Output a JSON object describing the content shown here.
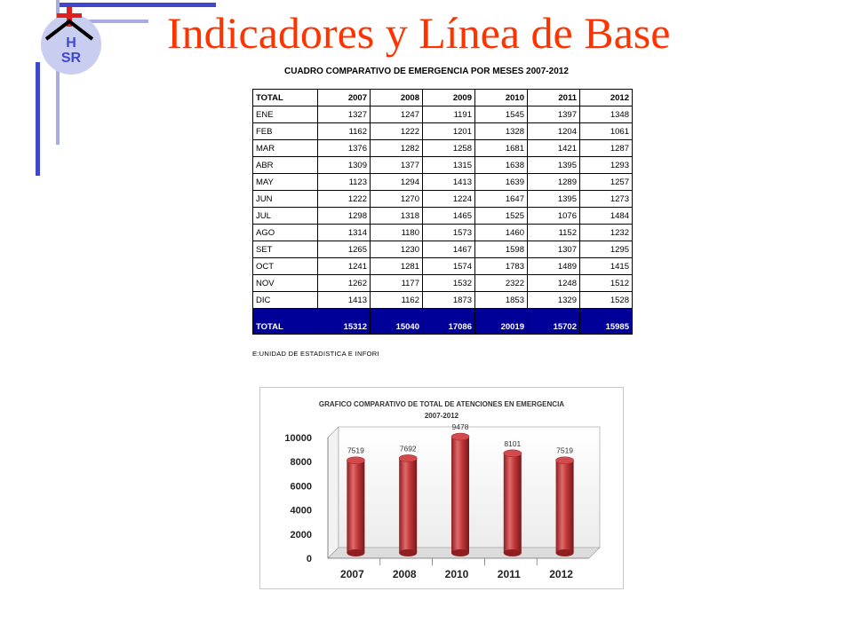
{
  "page": {
    "title": "Indicadores y Línea de Base"
  },
  "logo": {
    "letters": "HSR"
  },
  "table": {
    "title": "CUADRO COMPARATIVO DE EMERGENCIA POR MESES 2007-2012",
    "headers": [
      "TOTAL",
      "2007",
      "2008",
      "2009",
      "2010",
      "2011",
      "2012"
    ],
    "rows": [
      [
        "ENE",
        "1327",
        "1247",
        "1191",
        "1545",
        "1397",
        "1348"
      ],
      [
        "FEB",
        "1162",
        "1222",
        "1201",
        "1328",
        "1204",
        "1061"
      ],
      [
        "MAR",
        "1376",
        "1282",
        "1258",
        "1681",
        "1421",
        "1287"
      ],
      [
        "ABR",
        "1309",
        "1377",
        "1315",
        "1638",
        "1395",
        "1293"
      ],
      [
        "MAY",
        "1123",
        "1294",
        "1413",
        "1639",
        "1289",
        "1257"
      ],
      [
        "JUN",
        "1222",
        "1270",
        "1224",
        "1647",
        "1395",
        "1273"
      ],
      [
        "JUL",
        "1298",
        "1318",
        "1465",
        "1525",
        "1076",
        "1484"
      ],
      [
        "AGO",
        "1314",
        "1180",
        "1573",
        "1460",
        "1152",
        "1232"
      ],
      [
        "SET",
        "1265",
        "1230",
        "1467",
        "1598",
        "1307",
        "1295"
      ],
      [
        "OCT",
        "1241",
        "1281",
        "1574",
        "1783",
        "1489",
        "1415"
      ],
      [
        "NOV",
        "1262",
        "1177",
        "1532",
        "2322",
        "1248",
        "1512"
      ],
      [
        "DIC",
        "1413",
        "1162",
        "1873",
        "1853",
        "1329",
        "1528"
      ]
    ],
    "total": [
      "TOTAL",
      "15312",
      "15040",
      "17086",
      "20019",
      "15702",
      "15985"
    ],
    "source": "E:UNIDAD DE ESTADISTICA E INFORI"
  },
  "chart_data": {
    "type": "bar",
    "title": "GRAFICO COMPARATIVO DE TOTAL DE ATENCIONES EN EMERGENCIA",
    "subtitle": "2007-2012",
    "categories": [
      "2007",
      "2008",
      "2010",
      "2011",
      "2012"
    ],
    "values": [
      7519,
      7692,
      9478,
      8101,
      7519
    ],
    "ylim": [
      0,
      10000
    ],
    "yticks": [
      "0",
      "2000",
      "4000",
      "6000",
      "8000",
      "10000"
    ],
    "bar_color": "#c0393b",
    "grid": false,
    "legend": "none"
  },
  "colors": {
    "title": "#ff3300",
    "accent_dark": "#3f48cc",
    "accent_light": "#a9acdf",
    "table_total_bg": "#000099"
  }
}
